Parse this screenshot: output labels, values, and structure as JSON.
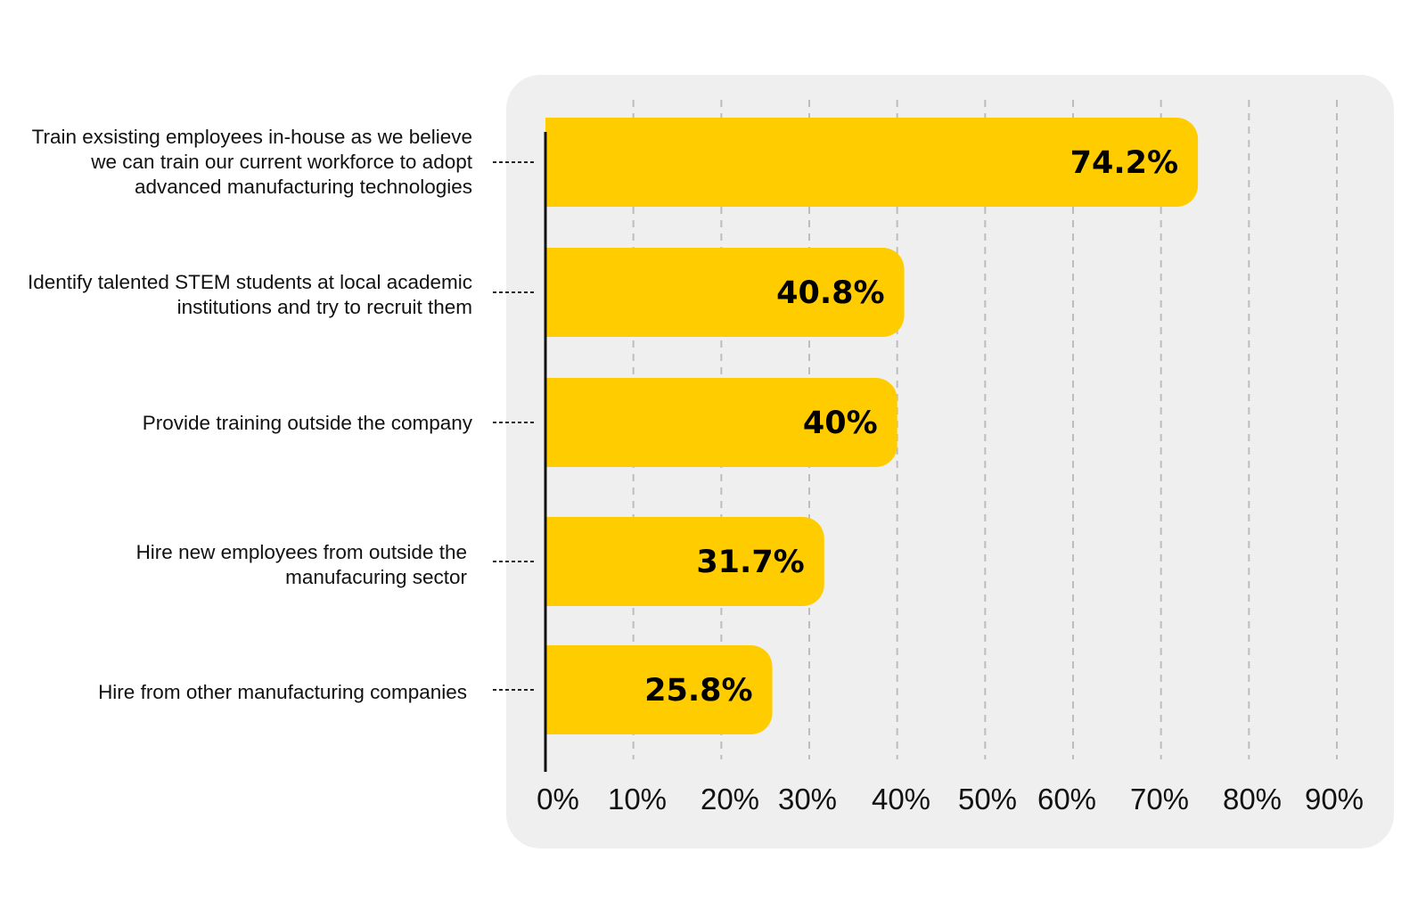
{
  "chart_data": {
    "type": "bar",
    "orientation": "horizontal",
    "categories": [
      "Train exsisting employees in-house as we believe we can train our current workforce to adopt advanced manufacturing technologies",
      "Identify talented STEM students at local academic institutions and try to recruit them",
      "Provide training outside the company",
      "Hire new employees from outside the manufacuring sector",
      "Hire from other manufacturing companies"
    ],
    "values": [
      74.2,
      40.8,
      40,
      31.7,
      25.8
    ],
    "value_labels": [
      "74.2%",
      "40.8%",
      "40%",
      "31.7%",
      "25.8%"
    ],
    "xticks": [
      "0%",
      "10%",
      "20%",
      "30%",
      "40%",
      "50%",
      "60%",
      "70%",
      "80%",
      "90%"
    ],
    "xlim": [
      0,
      90
    ],
    "grid": true,
    "colors": {
      "bar": "#FFCC00",
      "panel": "#EFEFEF",
      "grid": "#BDBDBD",
      "text": "#111111"
    }
  }
}
